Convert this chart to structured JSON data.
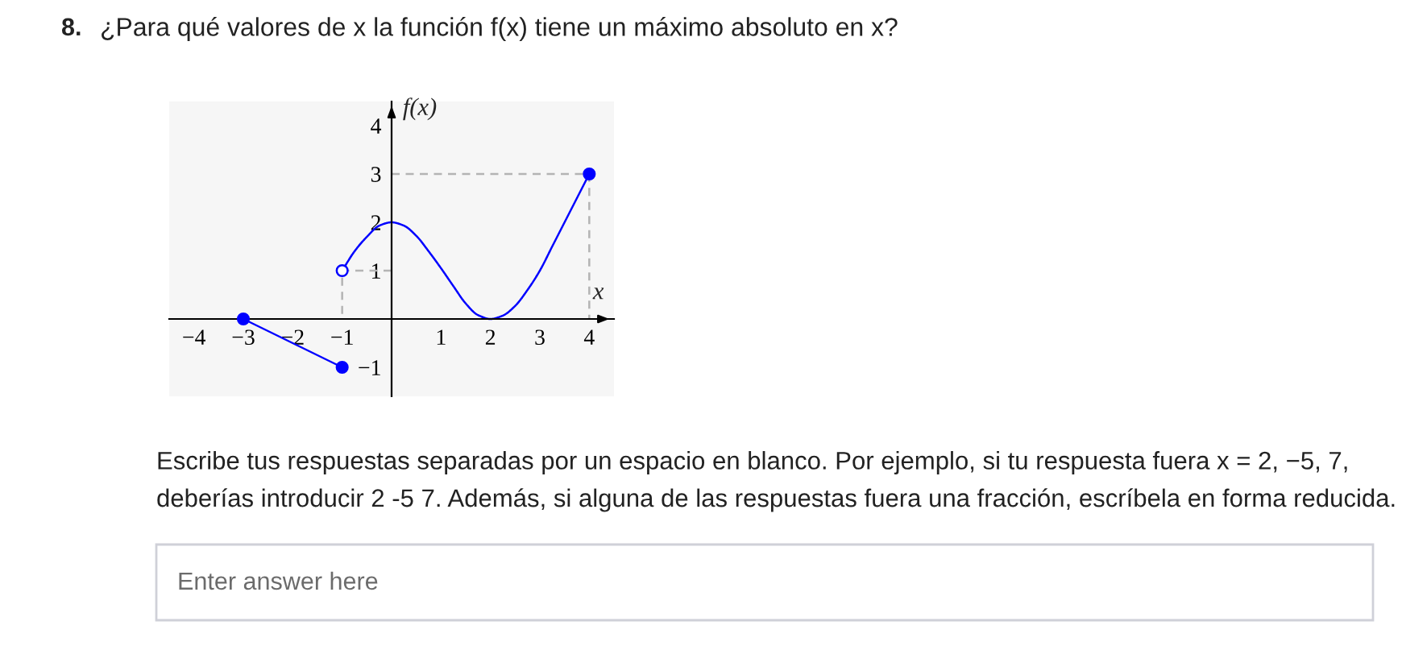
{
  "chart_data": {
    "type": "line",
    "title": "¿Para qué valores de x la función f(x) tiene un máximo absoluto en x?",
    "xlabel": "x",
    "ylabel": "f(x)",
    "annotations": [
      "8.",
      "Escribe tus respuestas separadas por un espacio en blanco. Por ejemplo, si tu respuesta fuera x = 2, −5, 7, deberías introducir 2 -5 7. Además, si alguna de las respuestas fuera una fracción, escríbela en forma reducida.",
      "Enter answer here"
    ],
    "xlim": [
      -4.5,
      4.5
    ],
    "ylim": [
      -1.6,
      4.5
    ],
    "xticks": [
      {
        "value": -4,
        "label": "−4"
      },
      {
        "value": -3,
        "label": "−3"
      },
      {
        "value": -2,
        "label": "−2"
      },
      {
        "value": -1,
        "label": "−1"
      },
      1,
      2,
      3,
      4
    ],
    "yticks": [
      {
        "value": -1,
        "label": "−1"
      },
      1,
      2,
      3,
      4
    ],
    "series": [
      {
        "color": "#b4b4b4",
        "line_style": "dashed",
        "x": [
          0,
          -1,
          -1
        ],
        "values": [
          1,
          1,
          0
        ]
      },
      {
        "color": "#b4b4b4",
        "line_style": "dashed",
        "x": [
          0,
          4,
          4
        ],
        "values": [
          3,
          3,
          0
        ]
      },
      {
        "color": "#0000ff",
        "x": [
          -3,
          -1
        ],
        "values": [
          0,
          -1
        ]
      },
      {
        "color": "#0000ff",
        "x": [
          -1,
          -0.75,
          -0.5,
          -0.25,
          0,
          0.25,
          0.5,
          0.75,
          1,
          1.25,
          1.5,
          1.75,
          2,
          2.25,
          2.5,
          2.75,
          3,
          3.25,
          3.5,
          3.75,
          4
        ],
        "values": [
          1,
          1.4,
          1.7,
          1.93,
          2,
          1.93,
          1.72,
          1.4,
          1.05,
          0.68,
          0.32,
          0.08,
          0,
          0.07,
          0.27,
          0.6,
          1,
          1.5,
          2,
          2.5,
          3
        ]
      },
      {
        "type": "scatter",
        "color": "#0000ff",
        "marker": "circle",
        "x": [
          -3,
          -1,
          4
        ],
        "values": [
          0,
          -1,
          3
        ]
      },
      {
        "type": "scatter",
        "color": "#0000ff",
        "marker": "open circle",
        "x": [
          -1
        ],
        "values": [
          1
        ]
      }
    ]
  }
}
